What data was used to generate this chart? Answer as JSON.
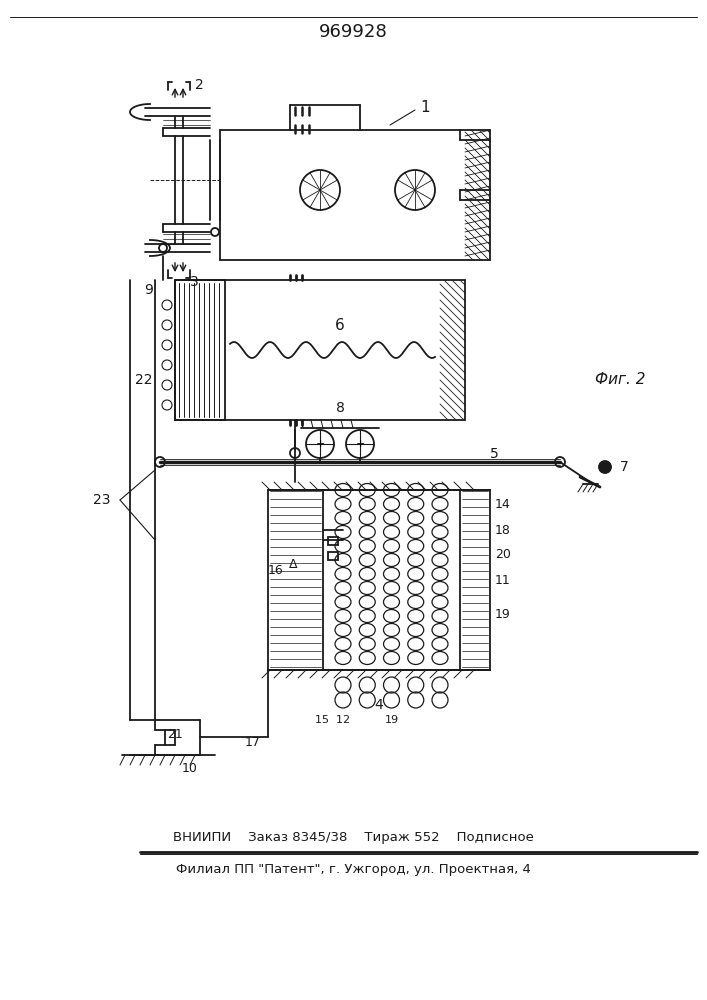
{
  "title": "969928",
  "footer_line1": "ВНИИПИ    Заказ 8345/38    Тираж 552    Подписное",
  "footer_line2": "Филиал ПП \"Патент\", г. Ужгород, ул. Проектная, 4",
  "fig_label": "Фиг. 2",
  "bg_color": "#ffffff",
  "line_color": "#1a1a1a"
}
